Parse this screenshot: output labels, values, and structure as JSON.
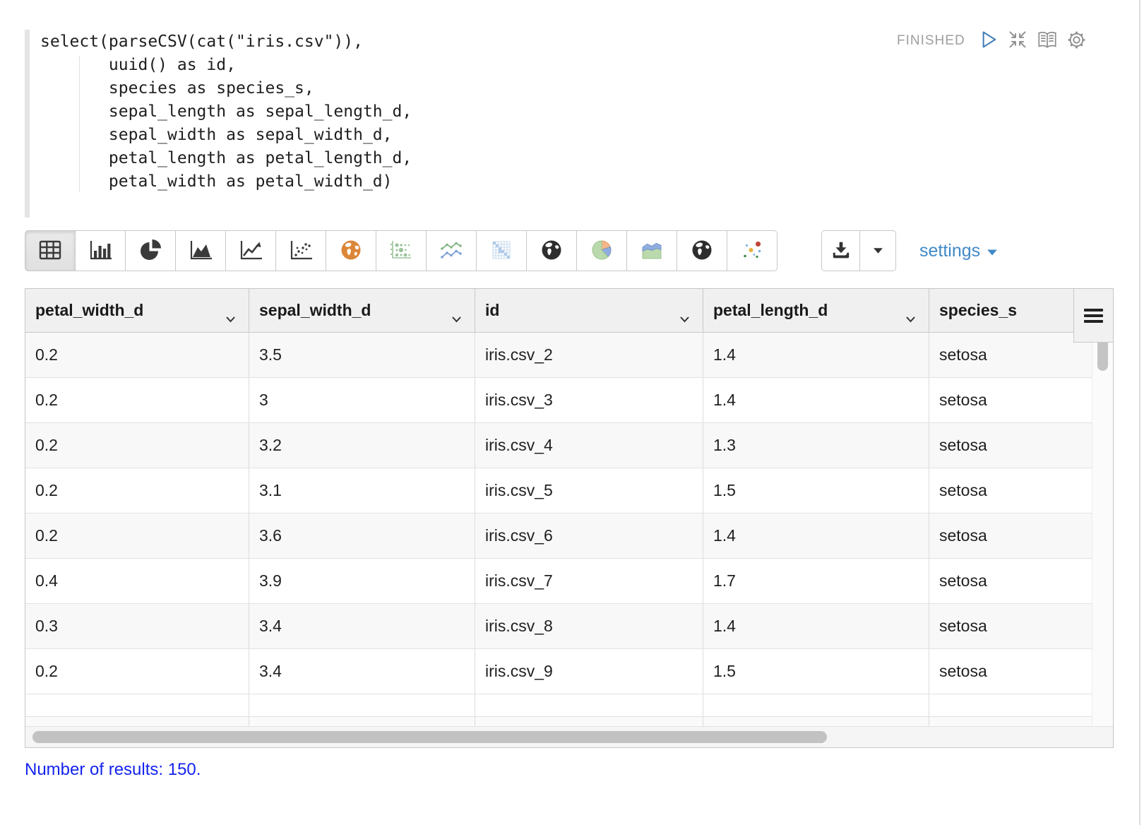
{
  "code": {
    "lines": [
      "select(parseCSV(cat(\"iris.csv\")),",
      "       uuid() as id,",
      "       species as species_s,",
      "       sepal_length as sepal_length_d,",
      "       sepal_width as sepal_width_d,",
      "       petal_length as petal_length_d,",
      "       petal_width as petal_width_d)"
    ]
  },
  "status": {
    "label": "FINISHED"
  },
  "paragraph_controls": {
    "icons": [
      "play-icon",
      "compress-icon",
      "book-icon",
      "gear-icon"
    ]
  },
  "display_toolbar": {
    "chart_buttons": [
      {
        "name": "table",
        "selected": true
      },
      {
        "name": "bar-chart",
        "selected": false
      },
      {
        "name": "pie-chart",
        "selected": false
      },
      {
        "name": "area-chart",
        "selected": false
      },
      {
        "name": "line-chart",
        "selected": false
      },
      {
        "name": "scatter-chart",
        "selected": false
      },
      {
        "name": "globe-orange",
        "selected": false
      },
      {
        "name": "bubble-matrix",
        "selected": false
      },
      {
        "name": "multi-line-chart",
        "selected": false
      },
      {
        "name": "heatmap",
        "selected": false
      },
      {
        "name": "globe-dark",
        "selected": false
      },
      {
        "name": "pie-color",
        "selected": false
      },
      {
        "name": "area-color",
        "selected": false
      },
      {
        "name": "globe-dark-2",
        "selected": false
      },
      {
        "name": "scatter-color",
        "selected": false
      }
    ],
    "download_icon": "download-icon",
    "settings_label": "settings"
  },
  "table": {
    "columns": [
      "petal_width_d",
      "sepal_width_d",
      "id",
      "petal_length_d",
      "species_s"
    ],
    "rows": [
      [
        "0.2",
        "3.5",
        "iris.csv_2",
        "1.4",
        "setosa"
      ],
      [
        "0.2",
        "3",
        "iris.csv_3",
        "1.4",
        "setosa"
      ],
      [
        "0.2",
        "3.2",
        "iris.csv_4",
        "1.3",
        "setosa"
      ],
      [
        "0.2",
        "3.1",
        "iris.csv_5",
        "1.5",
        "setosa"
      ],
      [
        "0.2",
        "3.6",
        "iris.csv_6",
        "1.4",
        "setosa"
      ],
      [
        "0.4",
        "3.9",
        "iris.csv_7",
        "1.7",
        "setosa"
      ],
      [
        "0.3",
        "3.4",
        "iris.csv_8",
        "1.4",
        "setosa"
      ],
      [
        "0.2",
        "3.4",
        "iris.csv_9",
        "1.5",
        "setosa"
      ]
    ]
  },
  "footer": {
    "results_text": "Number of results: 150."
  },
  "colors": {
    "accent_blue": "#4189c7",
    "link_blue": "#1423ee",
    "status_gray": "#9e9e9e",
    "icon_dark": "#3a3a3a"
  }
}
